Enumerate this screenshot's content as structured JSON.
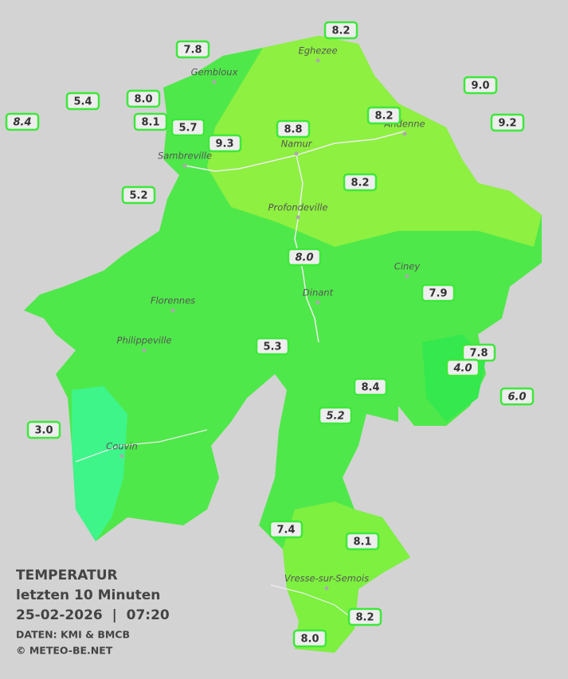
{
  "header": {
    "title": "TEMPERATUR",
    "subtitle": "letzten 10 Minuten",
    "datetime": "25-02-2026  |  07:20",
    "source": "DATEN: KMI & BMCB",
    "copyright": "© METEO-BE.NET"
  },
  "cities": [
    "Eghezee",
    "Gembloux",
    "Andenne",
    "Namur",
    "Sambreville",
    "Profondeville",
    "Ciney",
    "Dinant",
    "Florennes",
    "Philippeville",
    "Couvin",
    "Vresse-sur-Semois"
  ],
  "stations": [
    {
      "label": "8.2"
    },
    {
      "label": "7.8"
    },
    {
      "label": "9.0"
    },
    {
      "label": "5.4"
    },
    {
      "label": "8.0"
    },
    {
      "label": "8.4",
      "italic": true
    },
    {
      "label": "8.1"
    },
    {
      "label": "5.7"
    },
    {
      "label": "8.8"
    },
    {
      "label": "8.2"
    },
    {
      "label": "9.2"
    },
    {
      "label": "9.3"
    },
    {
      "label": "8.2"
    },
    {
      "label": "5.2"
    },
    {
      "label": "8.0",
      "italic": true
    },
    {
      "label": "7.9"
    },
    {
      "label": "5.3"
    },
    {
      "label": "7.8"
    },
    {
      "label": "4.0",
      "italic": true
    },
    {
      "label": "6.0",
      "italic": true
    },
    {
      "label": "8.4"
    },
    {
      "label": "5.2",
      "italic": true
    },
    {
      "label": "3.0"
    },
    {
      "label": "7.4"
    },
    {
      "label": "8.1"
    },
    {
      "label": "8.2"
    },
    {
      "label": "8.0"
    }
  ]
}
